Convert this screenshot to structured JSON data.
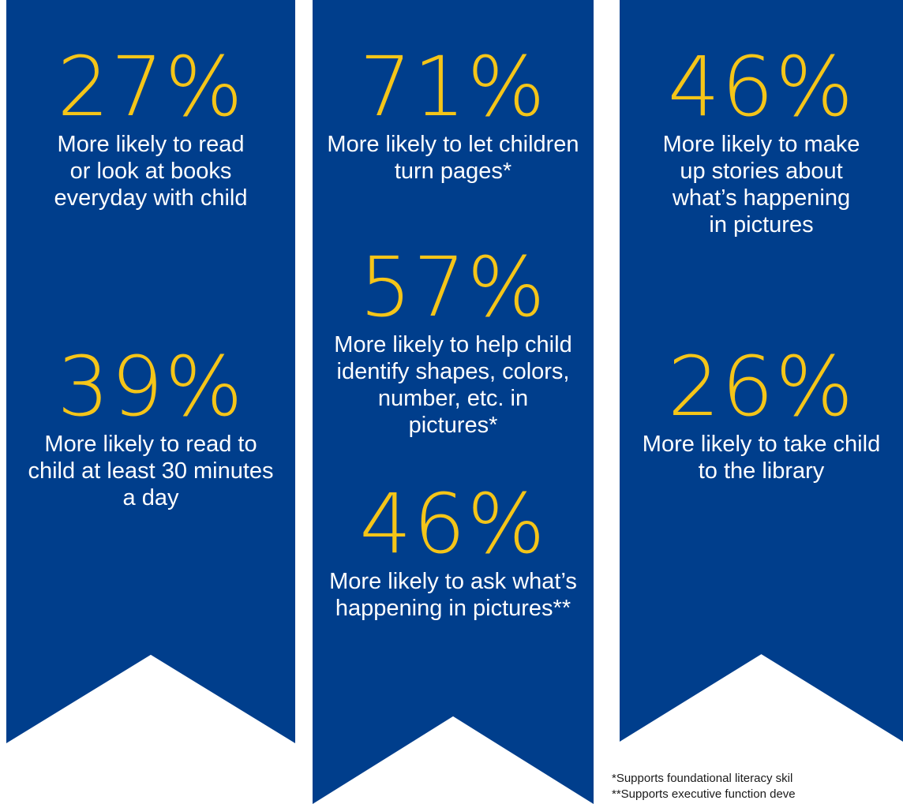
{
  "colors": {
    "ribbon_blue": "#003e8c",
    "percent_gold": "#f5c518",
    "label_white": "#ffffff"
  },
  "columns": [
    {
      "stats": [
        {
          "percent": "27%",
          "label": "More likely to read or look at books everyday with child"
        },
        {
          "percent": "39%",
          "label": "More likely to read to child at least 30 minutes a day"
        }
      ]
    },
    {
      "stats": [
        {
          "percent": "71%",
          "label": "More likely to let children turn pages*"
        },
        {
          "percent": "57%",
          "label": "More likely to help child identify shapes, colors, number, etc. in pictures*"
        },
        {
          "percent": "46%",
          "label": "More likely to ask what’s happening in pictures**"
        }
      ]
    },
    {
      "stats": [
        {
          "percent": "46%",
          "label": "More likely to make up stories about what’s happening in pictures"
        },
        {
          "percent": "26%",
          "label": "More likely to take child to the library"
        }
      ]
    }
  ],
  "footnotes": [
    "*Supports foundational literacy skil",
    "**Supports executive function deve"
  ]
}
